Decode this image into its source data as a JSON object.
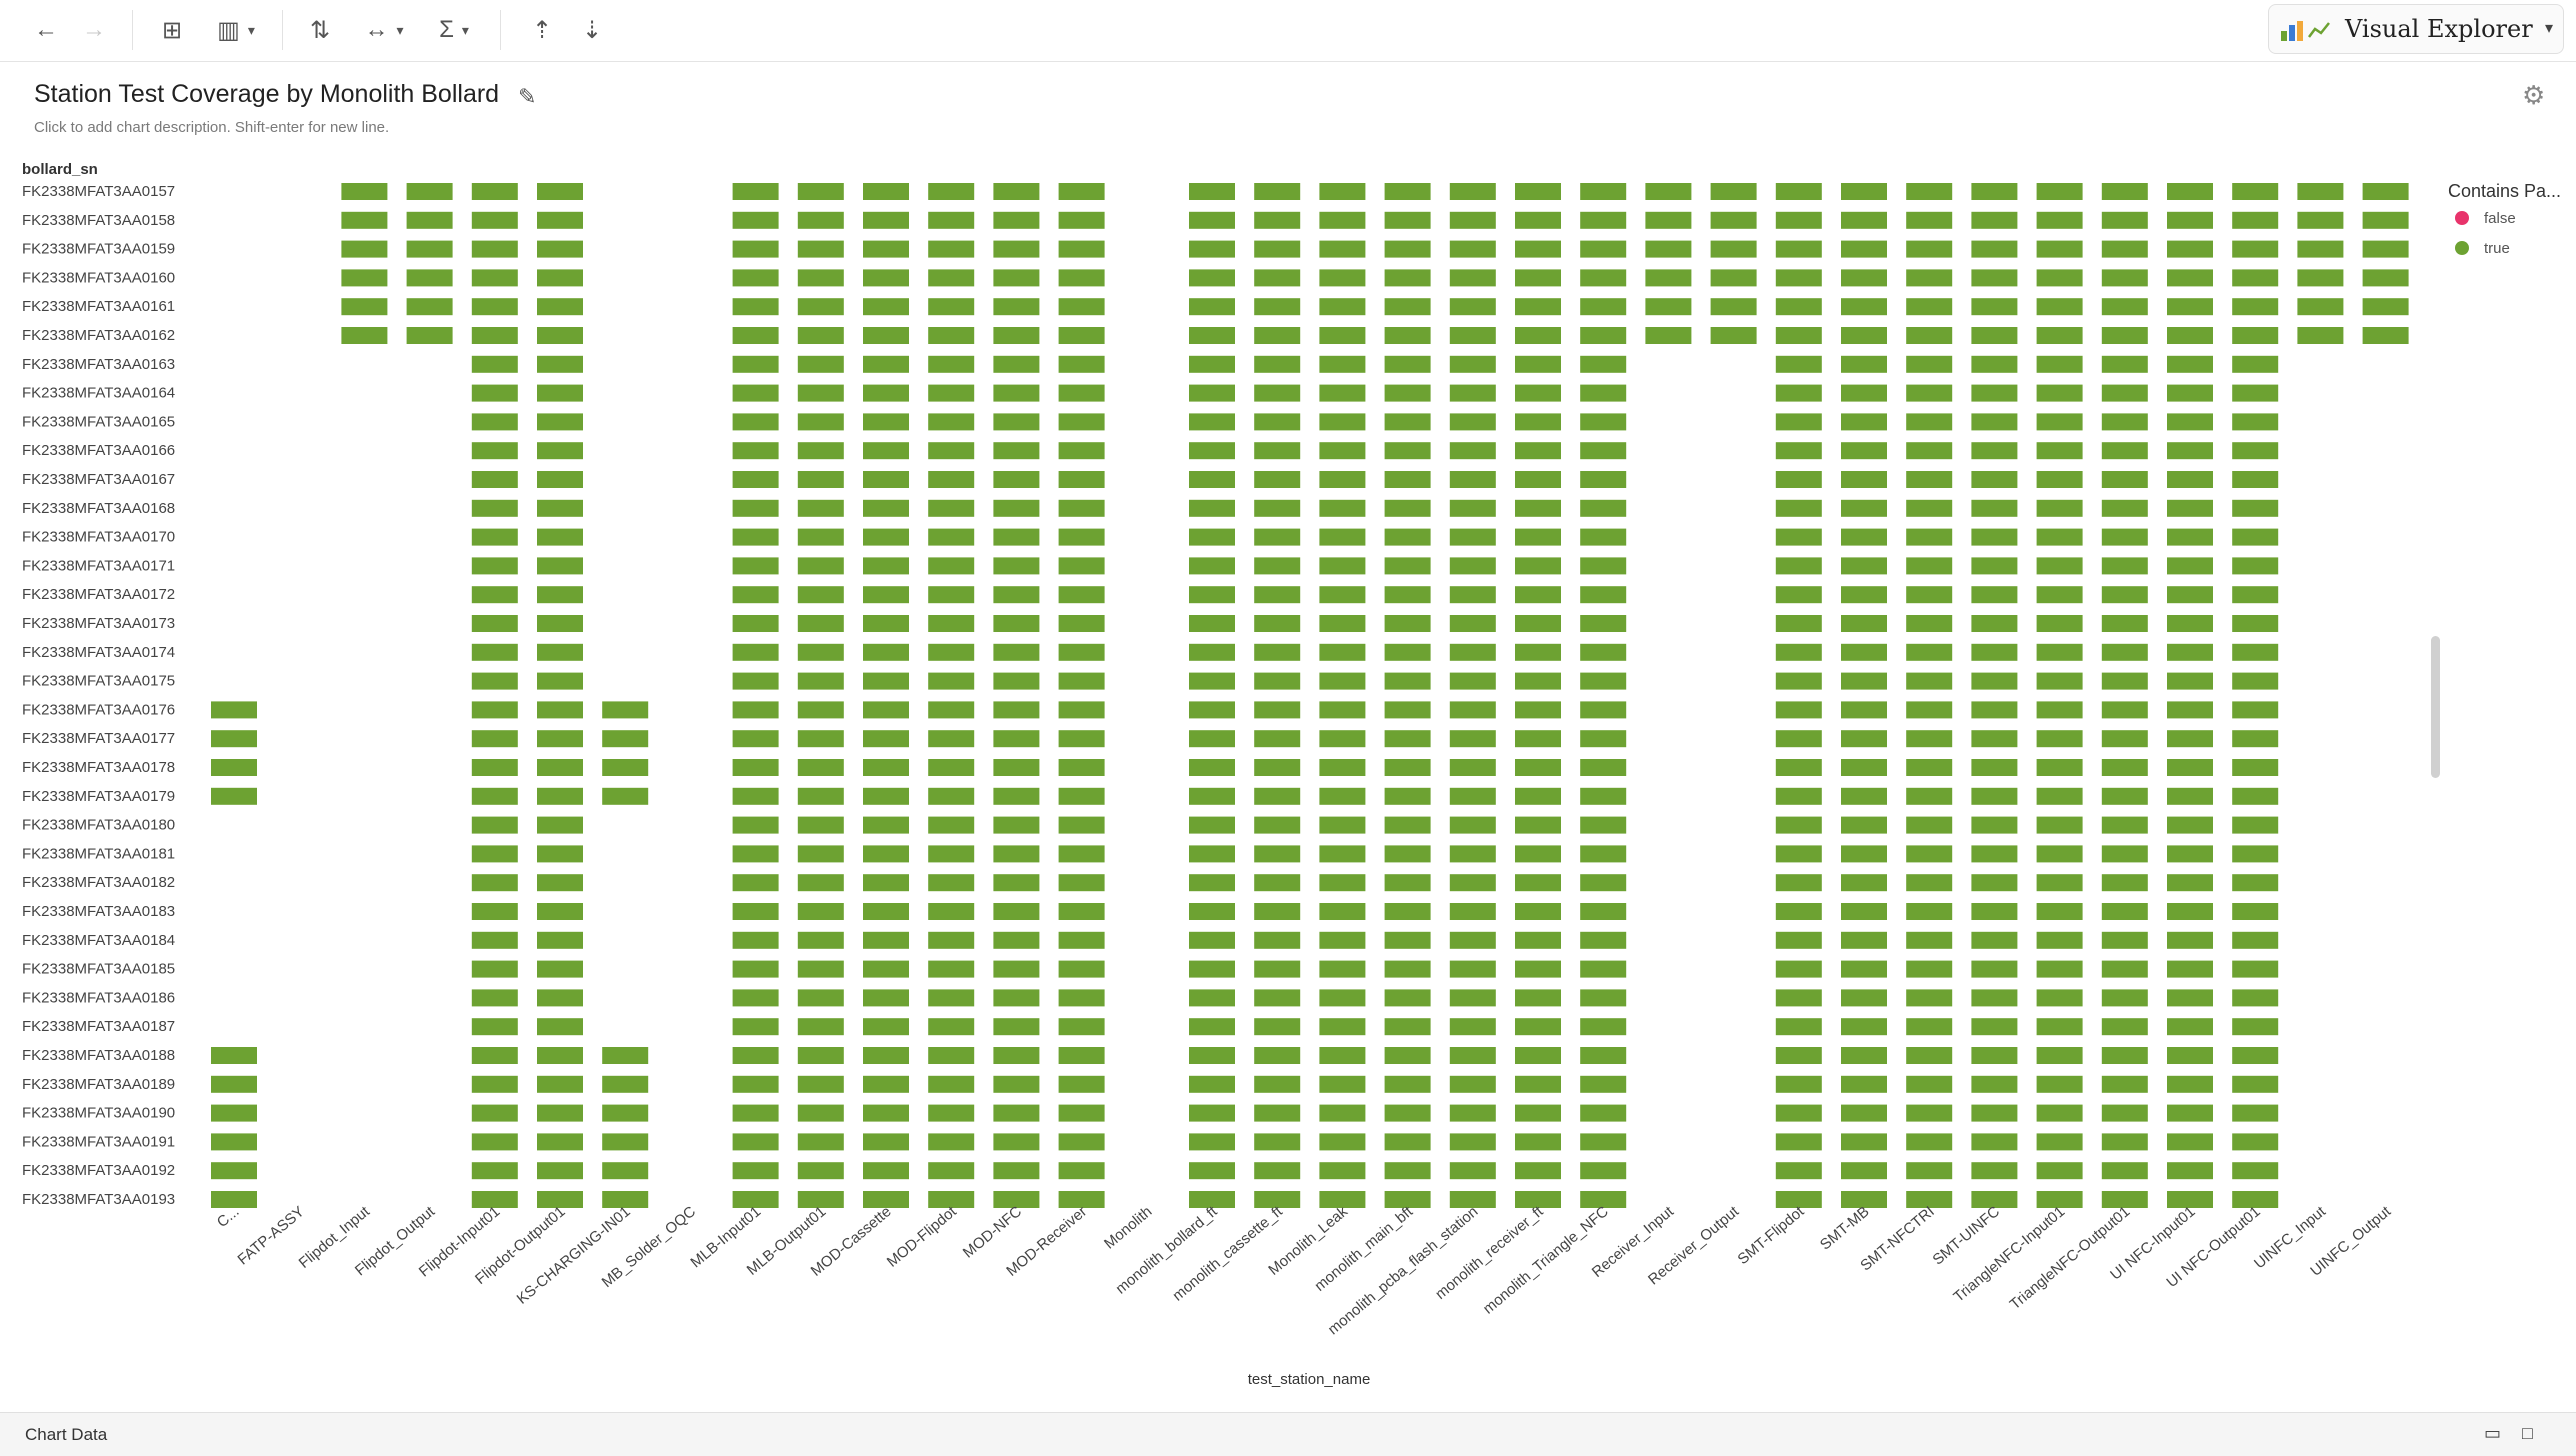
{
  "toolbar": {
    "back_icon": "arrow-left-icon",
    "forward_icon": "arrow-right-icon",
    "brand_label": "Visual Explorer",
    "glyphs": {
      "back": "←",
      "forward": "→",
      "add_chart": "⊞",
      "chart_type": "▥",
      "swap_axes": "⇅",
      "width": "↔",
      "sigma": "Σ",
      "sort_asc": "⇡",
      "sort_desc": "⇣",
      "caret": "▾"
    }
  },
  "header": {
    "title": "Station Test Coverage by Monolith Bollard",
    "description_placeholder": "Click to add chart description. Shift-enter for new line.",
    "edit_glyph": "✎",
    "settings_glyph": "⚙"
  },
  "bottom_panel": {
    "label": "Chart Data",
    "minimize_glyph": "▭",
    "maximize_glyph": "□"
  },
  "colors": {
    "true": "#6da232",
    "false": "#e8336b"
  },
  "chart_data": {
    "type": "heatmap",
    "title": "Station Test Coverage by Monolith Bollard",
    "xlabel": "test_station_name",
    "ylabel": "bollard_sn",
    "x_categories": [
      "C...",
      "FATP-ASSY",
      "Flipdot_Input",
      "Flipdot_Output",
      "Flipdot-Input01",
      "Flipdot-Output01",
      "KS-CHARGING-IN01",
      "MB_Solder_OQC",
      "MLB-Input01",
      "MLB-Output01",
      "MOD-Cassette",
      "MOD-Flipdot",
      "MOD-NFC",
      "MOD-Receiver",
      "Monolith",
      "monolith_bollard_ft",
      "monolith_cassette_ft",
      "Monolith_Leak",
      "monolith_main_bft",
      "monolith_pcba_flash_station",
      "monolith_receiver_ft",
      "monolith_Triangle_NFC",
      "Receiver_Input",
      "Receiver_Output",
      "SMT-Flipdot",
      "SMT-MB",
      "SMT-NFCTRI",
      "SMT-UINFC",
      "TriangleNFC-Input01",
      "TriangleNFC-Output01",
      "UI NFC-Input01",
      "UI NFC-Output01",
      "UINFC_Input",
      "UINFC_Output"
    ],
    "y_categories": [
      "FK2338MFAT3AA0157",
      "FK2338MFAT3AA0158",
      "FK2338MFAT3AA0159",
      "FK2338MFAT3AA0160",
      "FK2338MFAT3AA0161",
      "FK2338MFAT3AA0162",
      "FK2338MFAT3AA0163",
      "FK2338MFAT3AA0164",
      "FK2338MFAT3AA0165",
      "FK2338MFAT3AA0166",
      "FK2338MFAT3AA0167",
      "FK2338MFAT3AA0168",
      "FK2338MFAT3AA0170",
      "FK2338MFAT3AA0171",
      "FK2338MFAT3AA0172",
      "FK2338MFAT3AA0173",
      "FK2338MFAT3AA0174",
      "FK2338MFAT3AA0175",
      "FK2338MFAT3AA0176",
      "FK2338MFAT3AA0177",
      "FK2338MFAT3AA0178",
      "FK2338MFAT3AA0179",
      "FK2338MFAT3AA0180",
      "FK2338MFAT3AA0181",
      "FK2338MFAT3AA0182",
      "FK2338MFAT3AA0183",
      "FK2338MFAT3AA0184",
      "FK2338MFAT3AA0185",
      "FK2338MFAT3AA0186",
      "FK2338MFAT3AA0187",
      "FK2338MFAT3AA0188",
      "FK2338MFAT3AA0189",
      "FK2338MFAT3AA0190",
      "FK2338MFAT3AA0191",
      "FK2338MFAT3AA0192",
      "FK2338MFAT3AA0193"
    ],
    "matrix_rows": [
      "0011110011111101111111111111111111",
      "0011110011111101111111111111111111",
      "0011110011111101111111111111111111",
      "0011110011111101111111111111111111",
      "0011110011111101111111111111111111",
      "0011110011111101111111111111111111",
      "0000110011111101111111001111111100",
      "0000110011111101111111001111111100",
      "0000110011111101111111001111111100",
      "0000110011111101111111001111111100",
      "0000110011111101111111001111111100",
      "0000110011111101111111001111111100",
      "0000110011111101111111001111111100",
      "0000110011111101111111001111111100",
      "0000110011111101111111001111111100",
      "0000110011111101111111001111111100",
      "0000110011111101111111001111111100",
      "0000110011111101111111001111111100",
      "1000111011111101111111001111111100",
      "1000111011111101111111001111111100",
      "1000111011111101111111001111111100",
      "1000111011111101111111001111111100",
      "0000110011111101111111001111111100",
      "0000110011111101111111001111111100",
      "0000110011111101111111001111111100",
      "0000110011111101111111001111111100",
      "0000110011111101111111001111111100",
      "0000110011111101111111001111111100",
      "0000110011111101111111001111111100",
      "0000110011111101111111001111111100",
      "1000111011111101111111001111111100",
      "1000111011111101111111001111111100",
      "1000111011111101111111001111111100",
      "1000111011111101111111001111111100",
      "1000111011111101111111001111111100",
      "1000111011111101111111001111111100"
    ],
    "cell_value": "true",
    "legend": {
      "title": "Contains Pa...",
      "placement": "right",
      "entries": [
        {
          "label": "false",
          "color": "#e8336b"
        },
        {
          "label": "true",
          "color": "#6da232"
        }
      ]
    },
    "grid": false
  }
}
